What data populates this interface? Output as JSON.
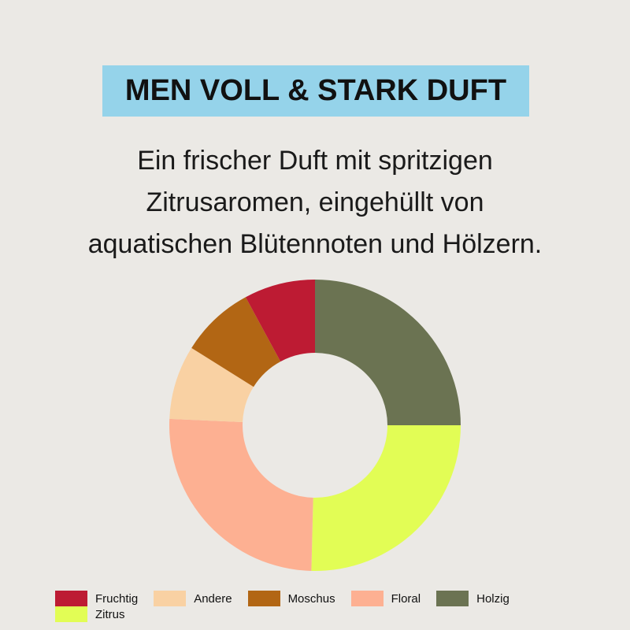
{
  "header": {
    "title": "MEN VOLL & STARK DUFT",
    "title_bg": "#95d3ea",
    "subtitle_lines": [
      "Ein frischer Duft mit spritzigen",
      "Zitrusaromen, eingehüllt von",
      "aquatischen Blütennoten und Hölzern."
    ]
  },
  "chart_data": {
    "type": "pie",
    "donut": true,
    "start": "top, clockwise",
    "slices": [
      {
        "label": "Holzig",
        "value": 25,
        "color": "#6b7352"
      },
      {
        "label": "Zitrus",
        "value": 25.4,
        "color": "#e2fd55"
      },
      {
        "label": "Floral",
        "value": 25.3,
        "color": "#fdb092"
      },
      {
        "label": "Andere",
        "value": 8.2,
        "color": "#f9d1a3"
      },
      {
        "label": "Moschus",
        "value": 8.2,
        "color": "#b26614"
      },
      {
        "label": "Fruchtig",
        "value": 7.9,
        "color": "#bd1b33"
      }
    ],
    "legend_order": [
      "Fruchtig",
      "Andere",
      "Moschus",
      "Floral",
      "Holzig",
      "Zitrus"
    ],
    "legend_placement": "bottom"
  }
}
